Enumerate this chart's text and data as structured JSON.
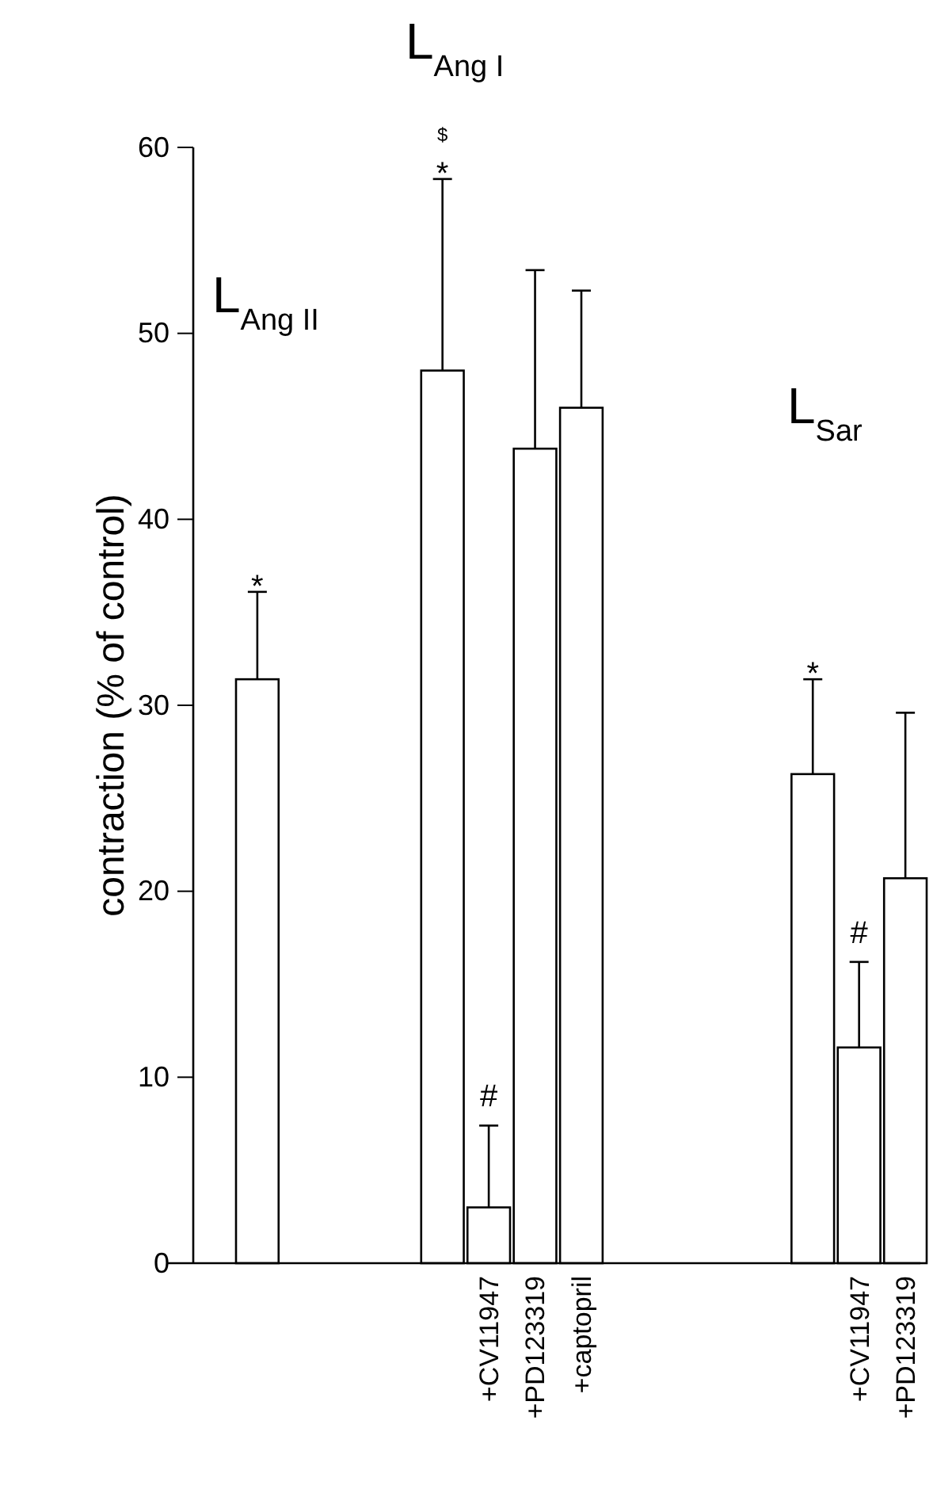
{
  "chart_data": {
    "type": "bar",
    "ylabel": "contraction (% of control)",
    "categories": [
      null,
      null,
      null,
      null,
      null,
      "+CV11947",
      "+PD123319",
      "+captopril",
      null,
      null,
      null,
      null,
      null,
      "+CV11947",
      "+PD123319"
    ],
    "values": [
      31.4,
      null,
      null,
      null,
      48,
      3.0,
      43.8,
      46.0,
      null,
      null,
      null,
      null,
      26.3,
      11.6,
      20.7
    ],
    "errors": [
      4.7,
      null,
      null,
      null,
      10.3,
      4.4,
      9.6,
      6.3,
      null,
      null,
      null,
      null,
      5.1,
      4.6,
      8.9
    ],
    "value_labels": [
      "*",
      null,
      null,
      null,
      null,
      "#",
      null,
      null,
      null,
      null,
      null,
      null,
      "*",
      "#",
      null
    ],
    "color": "#ffffff",
    "ylim": [
      0,
      60
    ],
    "yticks": [
      0,
      10,
      20,
      30,
      40,
      50,
      60
    ],
    "grid": false,
    "annotations": [
      "L$_{Ang II}$",
      "$",
      "*",
      "L$_{Ang I}$",
      "L$_{Sar}$"
    ]
  }
}
